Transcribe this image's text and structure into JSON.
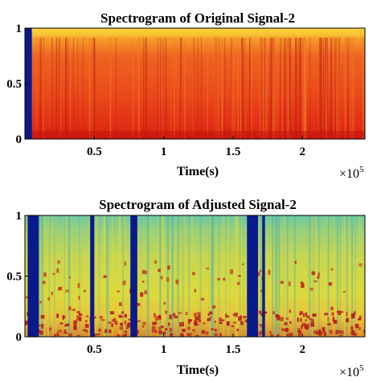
{
  "chart_data": [
    {
      "type": "heatmap",
      "title": "Spectrogram of Original Signal-2",
      "xlabel": "Time(s)",
      "ylabel": "",
      "x_exponent": "×10",
      "x_exponent_power": "5",
      "xlim": [
        0,
        2.45
      ],
      "ylim": [
        0,
        1
      ],
      "xticks": [
        "0.5",
        "1",
        "1.5",
        "2"
      ],
      "xtick_values": [
        0.5,
        1,
        1.5,
        2
      ],
      "yticks": [
        "0",
        "0.5",
        "1"
      ],
      "ytick_values": [
        0,
        0.5,
        1
      ],
      "colormap": "jet",
      "colors": {
        "low": "#0a1a8c",
        "mid": "#e8e04a",
        "high": "#d41c10"
      },
      "masked_regions": [
        [
          0,
          0.05
        ]
      ],
      "description_level": "high intensity (red/orange) across all frequencies; bright yellow band above 0.9"
    },
    {
      "type": "heatmap",
      "title": "Spectrogram of Adjusted Signal-2",
      "xlabel": "Time(s)",
      "ylabel": "",
      "x_exponent": "×10",
      "x_exponent_power": "5",
      "xlim": [
        0,
        2.45
      ],
      "ylim": [
        0,
        1
      ],
      "xticks": [
        "0.5",
        "1",
        "1.5",
        "2"
      ],
      "xtick_values": [
        0.5,
        1,
        1.5,
        2
      ],
      "yticks": [
        "0",
        "0.5",
        "1"
      ],
      "ytick_values": [
        0,
        0.5,
        1
      ],
      "colormap": "jet",
      "colors": {
        "low": "#0a1a8c",
        "mid": "#e8e04a",
        "high": "#c2201a"
      },
      "masked_regions": [
        [
          0.02,
          0.1
        ],
        [
          0.47,
          0.5
        ],
        [
          0.76,
          0.81
        ],
        [
          1.6,
          1.68
        ],
        [
          1.71,
          1.73
        ]
      ],
      "description_level": "mostly yellow-green; red energy concentrated below 0.2, sparse red blobs up to ~0.6"
    }
  ]
}
